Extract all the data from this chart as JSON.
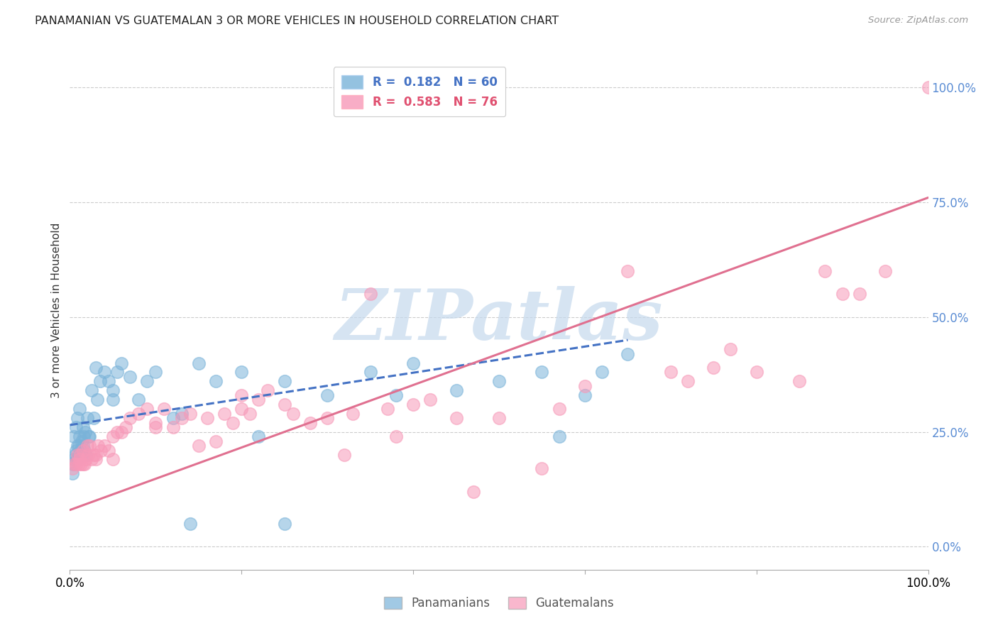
{
  "title": "PANAMANIAN VS GUATEMALAN 3 OR MORE VEHICLES IN HOUSEHOLD CORRELATION CHART",
  "source": "Source: ZipAtlas.com",
  "ylabel": "3 or more Vehicles in Household",
  "ytick_values": [
    0,
    25,
    50,
    75,
    100
  ],
  "xlim": [
    0,
    100
  ],
  "ylim": [
    -5,
    108
  ],
  "panamanian_color": "#7ab3d9",
  "guatemalan_color": "#f799b8",
  "watermark_text": "ZIPatlas",
  "watermark_color": "#c5d9ed",
  "pan_trend_x": [
    0,
    65
  ],
  "pan_trend_y": [
    26.5,
    45
  ],
  "guat_trend_x": [
    0,
    100
  ],
  "guat_trend_y": [
    8,
    76
  ],
  "pan_line_color": "#4472c4",
  "guat_line_color": "#e07090",
  "legend_text_pan": "R =  0.182   N = 60",
  "legend_text_guat": "R =  0.583   N = 76",
  "legend_color_pan": "#4472c4",
  "legend_color_guat": "#e05070",
  "panamanian_x": [
    0.3,
    0.4,
    0.5,
    0.6,
    0.7,
    0.8,
    0.9,
    1.0,
    1.1,
    1.2,
    1.3,
    1.4,
    1.5,
    1.6,
    1.7,
    1.8,
    1.9,
    2.0,
    2.2,
    2.5,
    2.8,
    3.0,
    3.5,
    4.0,
    4.5,
    5.0,
    5.5,
    6.0,
    7.0,
    8.0,
    9.0,
    10.0,
    12.0,
    14.0,
    15.0,
    17.0,
    20.0,
    22.0,
    25.0,
    30.0,
    35.0,
    38.0,
    40.0,
    45.0,
    50.0,
    55.0,
    57.0,
    60.0,
    62.0,
    65.0,
    25.0,
    13.0,
    5.0,
    3.2,
    2.3,
    1.5,
    0.9,
    1.1,
    0.7,
    0.5
  ],
  "panamanian_y": [
    16,
    18,
    19,
    20,
    21,
    19,
    22,
    22,
    24,
    21,
    20,
    23,
    22,
    24,
    21,
    25,
    20,
    28,
    24,
    34,
    28,
    39,
    36,
    38,
    36,
    32,
    38,
    40,
    37,
    32,
    36,
    38,
    28,
    5,
    40,
    36,
    38,
    24,
    5,
    33,
    38,
    33,
    40,
    34,
    36,
    38,
    24,
    33,
    38,
    42,
    36,
    29,
    34,
    32,
    24,
    26,
    28,
    30,
    26,
    24
  ],
  "guatemalan_x": [
    0.3,
    0.5,
    0.7,
    0.9,
    1.1,
    1.3,
    1.5,
    1.7,
    1.9,
    2.1,
    2.3,
    2.5,
    2.8,
    3.0,
    3.3,
    3.6,
    4.0,
    4.5,
    5.0,
    5.5,
    6.0,
    6.5,
    7.0,
    8.0,
    9.0,
    10.0,
    11.0,
    12.0,
    13.0,
    14.0,
    15.0,
    16.0,
    17.0,
    18.0,
    19.0,
    20.0,
    21.0,
    22.0,
    23.0,
    25.0,
    26.0,
    28.0,
    30.0,
    32.0,
    33.0,
    35.0,
    37.0,
    38.0,
    40.0,
    42.0,
    45.0,
    47.0,
    50.0,
    55.0,
    57.0,
    60.0,
    65.0,
    70.0,
    72.0,
    75.0,
    77.0,
    80.0,
    85.0,
    88.0,
    90.0,
    92.0,
    95.0,
    100.0,
    20.0,
    10.0,
    5.0,
    3.0,
    2.0,
    1.5,
    1.2,
    1.0
  ],
  "guatemalan_y": [
    17,
    18,
    18,
    20,
    19,
    18,
    21,
    18,
    19,
    20,
    22,
    19,
    20,
    19,
    22,
    21,
    22,
    21,
    24,
    25,
    25,
    26,
    28,
    29,
    30,
    27,
    30,
    26,
    28,
    29,
    22,
    28,
    23,
    29,
    27,
    30,
    29,
    32,
    34,
    31,
    29,
    27,
    28,
    20,
    29,
    55,
    30,
    24,
    31,
    32,
    28,
    12,
    28,
    17,
    30,
    35,
    60,
    38,
    36,
    39,
    43,
    38,
    36,
    60,
    55,
    55,
    60,
    100,
    33,
    26,
    19,
    20,
    22,
    18,
    20,
    18
  ]
}
